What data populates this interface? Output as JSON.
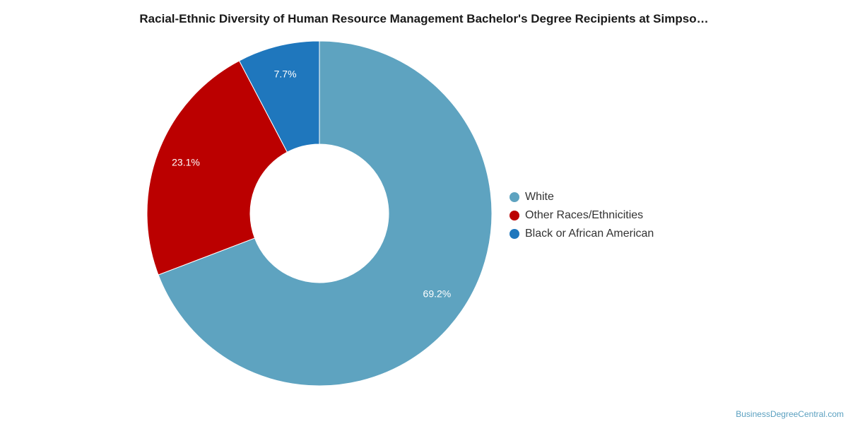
{
  "chart_data": {
    "type": "pie",
    "title": "Racial-Ethnic Diversity of Human Resource Management Bachelor's Degree Recipients at Simpso…",
    "donut": true,
    "legend_position": "right",
    "slices": [
      {
        "name": "White",
        "value": 69.2,
        "label": "69.2%",
        "color": "#5ea3c0"
      },
      {
        "name": "Other Races/Ethnicities",
        "value": 23.1,
        "label": "23.1%",
        "color": "#bb0000"
      },
      {
        "name": "Black or African American",
        "value": 7.7,
        "label": "7.7%",
        "color": "#1f77bd"
      }
    ]
  },
  "source": "BusinessDegreeCentral.com"
}
